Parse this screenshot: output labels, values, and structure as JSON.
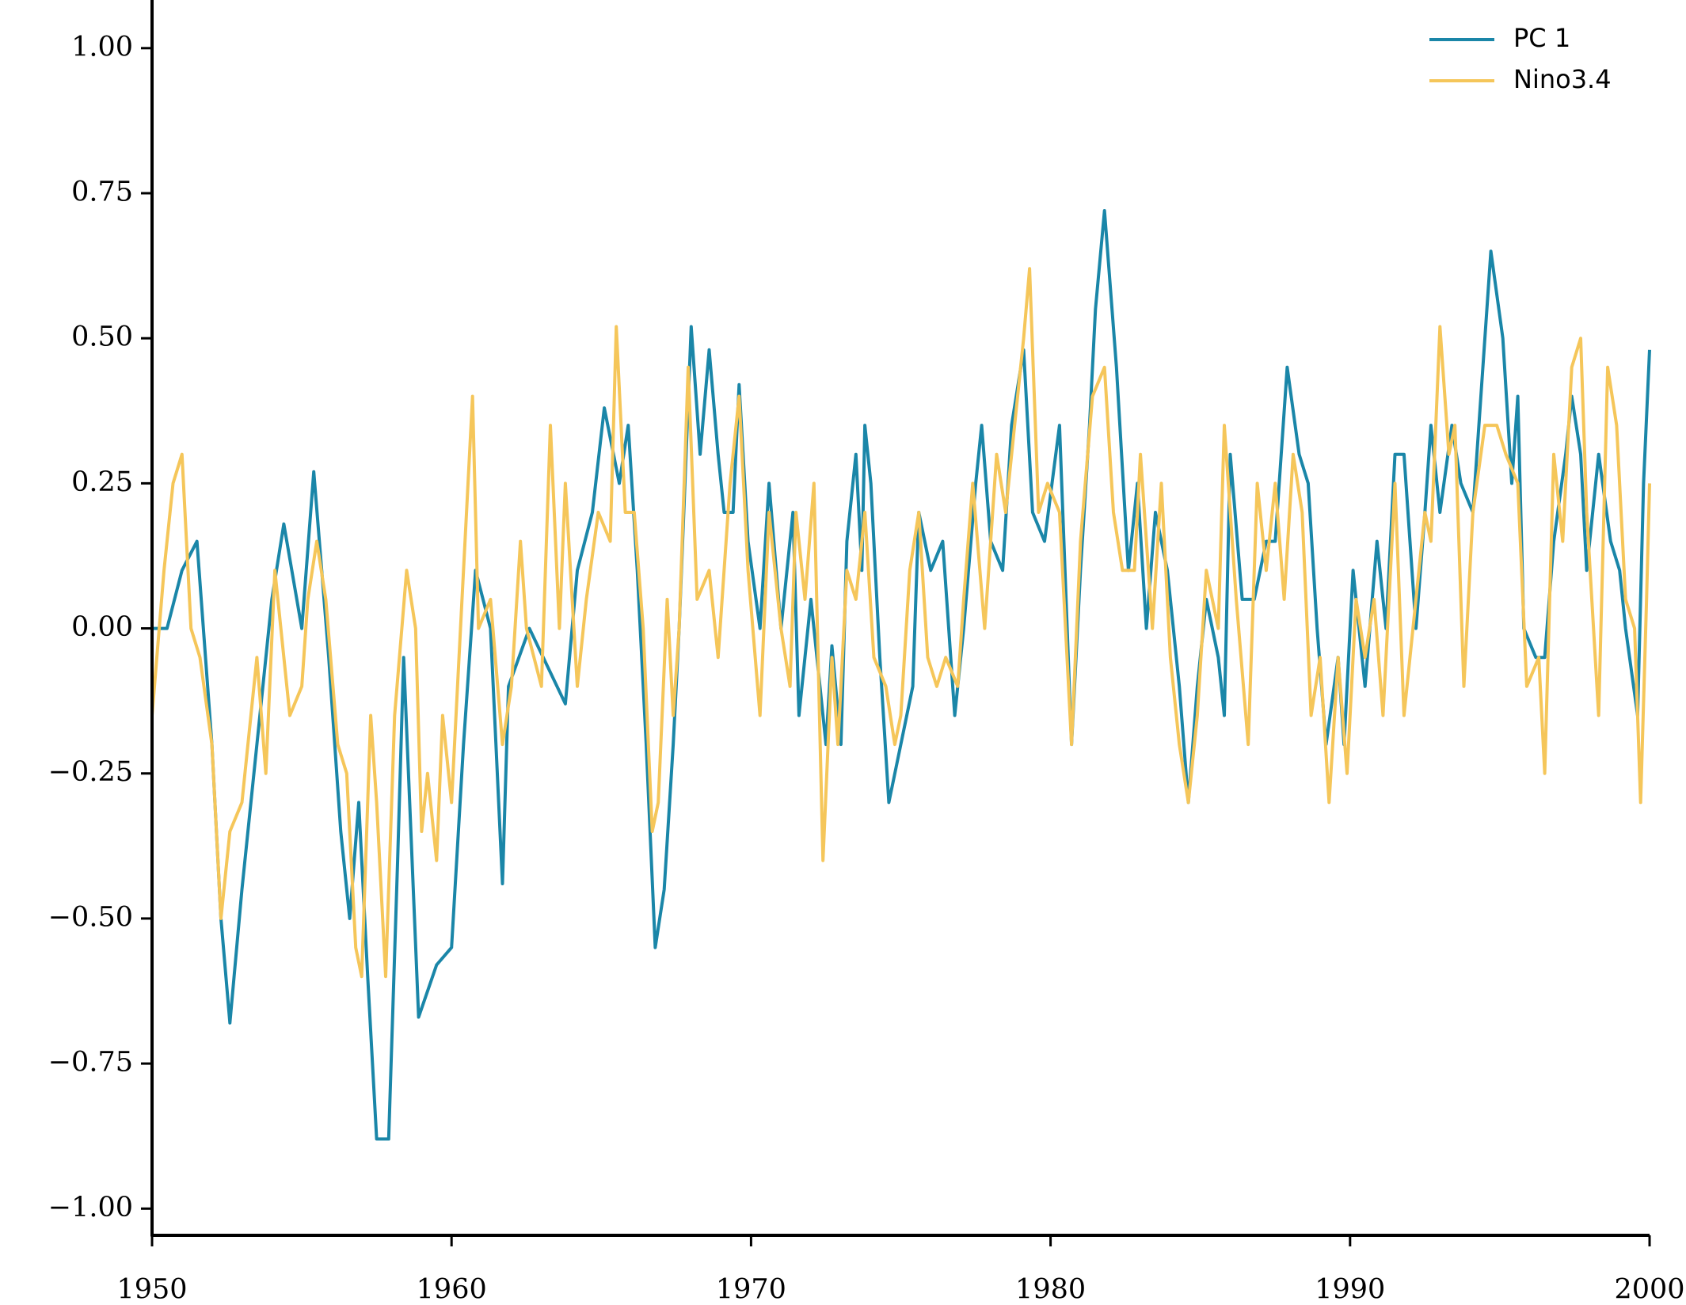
{
  "chart_data": {
    "type": "line",
    "xlim": [
      1950,
      2000
    ],
    "xticks": [
      1950,
      1960,
      1970,
      1980,
      1990,
      2000
    ],
    "ylim": [
      -1.046,
      1.083
    ],
    "yticks": [
      {
        "value": -1,
        "label": "−1.00"
      },
      {
        "value": -0.75,
        "label": "−0.75"
      },
      {
        "value": -0.5,
        "label": "−0.50"
      },
      {
        "value": -0.25,
        "label": "−0.25"
      },
      {
        "value": 0,
        "label": "0.00"
      },
      {
        "value": 0.25,
        "label": "0.25"
      },
      {
        "value": 0.5,
        "label": "0.50"
      },
      {
        "value": 0.75,
        "label": "0.75"
      },
      {
        "value": 1,
        "label": "1.00"
      }
    ],
    "legend": "upper right",
    "series": [
      {
        "name": "PC 1",
        "color": "#1a86a8",
        "x": [
          1950.0,
          1950.5,
          1951.0,
          1951.5,
          1952.0,
          1952.3,
          1952.6,
          1953.0,
          1953.5,
          1954.0,
          1954.4,
          1955.0,
          1955.4,
          1955.9,
          1956.3,
          1956.6,
          1956.9,
          1957.2,
          1957.5,
          1957.9,
          1958.2,
          1958.4,
          1958.9,
          1959.5,
          1960.0,
          1960.4,
          1960.8,
          1961.3,
          1961.7,
          1961.9,
          1962.6,
          1963.8,
          1964.2,
          1964.7,
          1965.1,
          1965.6,
          1965.9,
          1966.2,
          1966.5,
          1966.8,
          1967.1,
          1967.4,
          1967.6,
          1968.0,
          1968.3,
          1968.6,
          1968.9,
          1969.1,
          1969.4,
          1969.6,
          1969.9,
          1970.3,
          1970.6,
          1971.0,
          1971.4,
          1971.6,
          1972.0,
          1972.5,
          1972.7,
          1973.0,
          1973.2,
          1973.5,
          1973.7,
          1973.8,
          1974.0,
          1974.3,
          1974.6,
          1975.0,
          1975.4,
          1975.6,
          1976.0,
          1976.4,
          1976.8,
          1977.1,
          1977.5,
          1977.7,
          1978.0,
          1978.4,
          1978.7,
          1979.1,
          1979.4,
          1979.8,
          1980.3,
          1980.7,
          1981.0,
          1981.3,
          1981.5,
          1981.8,
          1982.2,
          1982.6,
          1982.9,
          1983.2,
          1983.5,
          1983.9,
          1984.3,
          1984.6,
          1984.9,
          1985.2,
          1985.6,
          1985.8,
          1986.0,
          1986.4,
          1986.8,
          1987.2,
          1987.5,
          1987.9,
          1988.3,
          1988.6,
          1988.9,
          1989.2,
          1989.6,
          1989.8,
          1990.1,
          1990.5,
          1990.9,
          1991.2,
          1991.5,
          1991.8,
          1992.2,
          1992.5,
          1992.7,
          1993.0,
          1993.4,
          1993.7,
          1994.1,
          1994.7,
          1995.1,
          1995.4,
          1995.6,
          1995.8,
          1996.2,
          1996.5,
          1996.8,
          1997.2,
          1997.4,
          1997.7,
          1997.9,
          1998.3,
          1998.7,
          1999.0,
          1999.2,
          1999.6,
          1999.8,
          2000.0
        ],
        "values": [
          0.0,
          0.0,
          0.1,
          0.15,
          -0.2,
          -0.5,
          -0.68,
          -0.45,
          -0.2,
          0.05,
          0.18,
          0.0,
          0.27,
          -0.05,
          -0.35,
          -0.5,
          -0.3,
          -0.6,
          -0.88,
          -0.88,
          -0.4,
          -0.05,
          -0.67,
          -0.58,
          -0.55,
          -0.2,
          0.1,
          0.0,
          -0.44,
          -0.1,
          0.0,
          -0.13,
          0.1,
          0.2,
          0.38,
          0.25,
          0.35,
          0.1,
          -0.2,
          -0.55,
          -0.45,
          -0.2,
          0.0,
          0.52,
          0.3,
          0.48,
          0.3,
          0.2,
          0.2,
          0.42,
          0.15,
          0.0,
          0.25,
          0.0,
          0.2,
          -0.15,
          0.05,
          -0.2,
          -0.03,
          -0.2,
          0.15,
          0.3,
          0.1,
          0.35,
          0.25,
          -0.05,
          -0.3,
          -0.2,
          -0.1,
          0.2,
          0.1,
          0.15,
          -0.15,
          0.0,
          0.25,
          0.35,
          0.15,
          0.1,
          0.35,
          0.48,
          0.2,
          0.15,
          0.35,
          -0.2,
          0.1,
          0.35,
          0.55,
          0.72,
          0.45,
          0.1,
          0.25,
          0.0,
          0.2,
          0.1,
          -0.1,
          -0.3,
          -0.1,
          0.05,
          -0.05,
          -0.15,
          0.3,
          0.05,
          0.05,
          0.15,
          0.15,
          0.45,
          0.3,
          0.25,
          0.0,
          -0.2,
          -0.05,
          -0.2,
          0.1,
          -0.1,
          0.15,
          0.0,
          0.3,
          0.3,
          0.0,
          0.2,
          0.35,
          0.2,
          0.35,
          0.25,
          0.2,
          0.65,
          0.5,
          0.25,
          0.4,
          0.0,
          -0.05,
          -0.05,
          0.15,
          0.3,
          0.4,
          0.3,
          0.1,
          0.3,
          0.15,
          0.1,
          0.0,
          -0.15,
          0.25,
          0.48
        ]
      },
      {
        "name": "Nino3.4",
        "color": "#f5c65a",
        "x": [
          1950.0,
          1950.4,
          1950.7,
          1951.0,
          1951.3,
          1951.6,
          1952.0,
          1952.3,
          1952.6,
          1953.0,
          1953.5,
          1953.8,
          1954.1,
          1954.6,
          1955.0,
          1955.2,
          1955.5,
          1955.8,
          1956.2,
          1956.5,
          1956.8,
          1957.0,
          1957.3,
          1957.5,
          1957.8,
          1958.1,
          1958.5,
          1958.8,
          1959.0,
          1959.2,
          1959.5,
          1959.7,
          1960.0,
          1960.3,
          1960.7,
          1960.9,
          1961.3,
          1961.7,
          1962.0,
          1962.3,
          1962.5,
          1963.0,
          1963.3,
          1963.6,
          1963.8,
          1964.2,
          1964.5,
          1964.9,
          1965.3,
          1965.5,
          1965.8,
          1966.1,
          1966.4,
          1966.7,
          1966.9,
          1967.2,
          1967.4,
          1967.6,
          1967.9,
          1968.2,
          1968.6,
          1968.9,
          1969.3,
          1969.6,
          1969.9,
          1970.3,
          1970.6,
          1971.0,
          1971.3,
          1971.5,
          1971.8,
          1972.1,
          1972.4,
          1972.7,
          1972.9,
          1973.2,
          1973.5,
          1973.8,
          1974.1,
          1974.5,
          1974.8,
          1975.0,
          1975.3,
          1975.6,
          1975.9,
          1976.2,
          1976.5,
          1976.9,
          1977.1,
          1977.4,
          1977.8,
          1978.2,
          1978.5,
          1978.8,
          1979.1,
          1979.3,
          1979.6,
          1979.9,
          1980.3,
          1980.7,
          1981.0,
          1981.4,
          1981.8,
          1982.1,
          1982.4,
          1982.8,
          1983.0,
          1983.4,
          1983.7,
          1984.0,
          1984.3,
          1984.6,
          1984.9,
          1985.2,
          1985.6,
          1985.8,
          1986.2,
          1986.6,
          1986.9,
          1987.2,
          1987.5,
          1987.8,
          1988.1,
          1988.4,
          1988.7,
          1989.0,
          1989.3,
          1989.6,
          1989.9,
          1990.2,
          1990.5,
          1990.8,
          1991.1,
          1991.5,
          1991.8,
          1992.2,
          1992.5,
          1992.7,
          1993.0,
          1993.3,
          1993.5,
          1993.8,
          1994.1,
          1994.5,
          1994.9,
          1995.2,
          1995.6,
          1995.9,
          1996.3,
          1996.5,
          1996.8,
          1997.1,
          1997.4,
          1997.7,
          1997.9,
          1998.3,
          1998.6,
          1998.9,
          1999.2,
          1999.5,
          1999.7,
          1999.9,
          2000.0
        ],
        "values": [
          -0.15,
          0.1,
          0.25,
          0.3,
          0.0,
          -0.05,
          -0.2,
          -0.5,
          -0.35,
          -0.3,
          -0.05,
          -0.25,
          0.1,
          -0.15,
          -0.1,
          0.05,
          0.15,
          0.05,
          -0.2,
          -0.25,
          -0.55,
          -0.6,
          -0.15,
          -0.3,
          -0.6,
          -0.15,
          0.1,
          0.0,
          -0.35,
          -0.25,
          -0.4,
          -0.15,
          -0.3,
          0.0,
          0.4,
          0.0,
          0.05,
          -0.2,
          -0.1,
          0.15,
          0.0,
          -0.1,
          0.35,
          0.0,
          0.25,
          -0.1,
          0.05,
          0.2,
          0.15,
          0.52,
          0.2,
          0.2,
          0.0,
          -0.35,
          -0.3,
          0.05,
          -0.15,
          0.0,
          0.45,
          0.05,
          0.1,
          -0.05,
          0.25,
          0.4,
          0.1,
          -0.15,
          0.2,
          0.0,
          -0.1,
          0.2,
          0.05,
          0.25,
          -0.4,
          -0.05,
          -0.2,
          0.1,
          0.05,
          0.2,
          -0.05,
          -0.1,
          -0.2,
          -0.15,
          0.1,
          0.2,
          -0.05,
          -0.1,
          -0.05,
          -0.1,
          0.05,
          0.25,
          0.0,
          0.3,
          0.2,
          0.35,
          0.5,
          0.62,
          0.2,
          0.25,
          0.2,
          -0.2,
          0.15,
          0.4,
          0.45,
          0.2,
          0.1,
          0.1,
          0.3,
          0.0,
          0.25,
          -0.05,
          -0.2,
          -0.3,
          -0.15,
          0.1,
          0.0,
          0.35,
          0.05,
          -0.2,
          0.25,
          0.1,
          0.25,
          0.05,
          0.3,
          0.2,
          -0.15,
          -0.05,
          -0.3,
          -0.05,
          -0.25,
          0.05,
          -0.05,
          0.05,
          -0.15,
          0.25,
          -0.15,
          0.05,
          0.2,
          0.15,
          0.52,
          0.3,
          0.35,
          -0.1,
          0.2,
          0.35,
          0.35,
          0.3,
          0.25,
          -0.1,
          -0.05,
          -0.25,
          0.3,
          0.15,
          0.45,
          0.5,
          0.2,
          -0.15,
          0.45,
          0.35,
          0.05,
          0.0,
          -0.3,
          0.05,
          0.25
        ]
      }
    ]
  }
}
